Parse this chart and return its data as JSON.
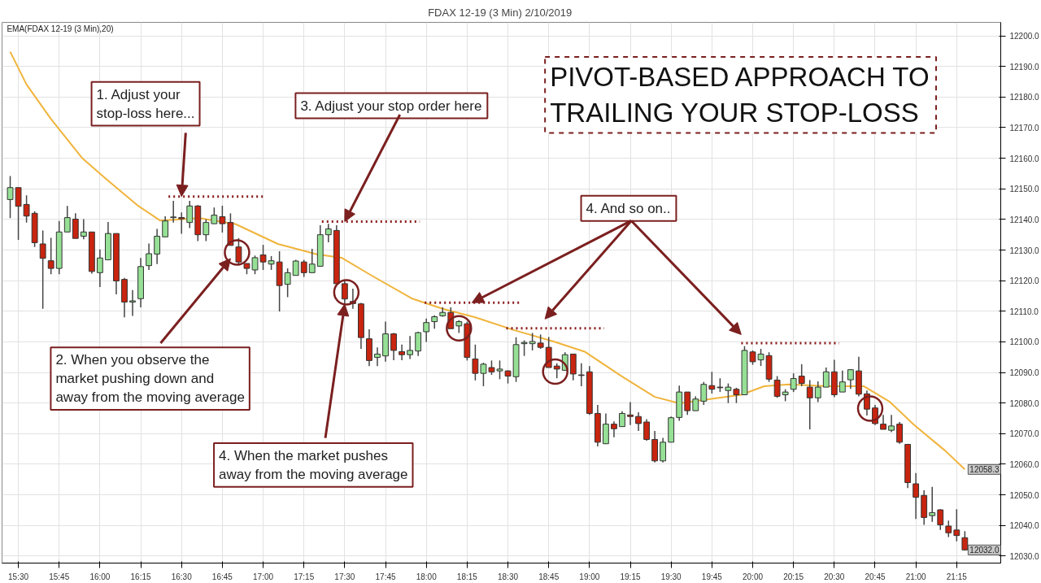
{
  "chart_data": {
    "type": "candlestick",
    "title": "FDAX 12-19 (3 Min)  2/10/2019",
    "x": [
      15.45,
      15.5,
      15.55,
      15.6,
      15.65,
      15.7,
      15.75,
      15.8,
      15.85,
      15.9,
      15.95,
      16,
      16.05,
      16.1,
      16.15,
      16.2,
      16.25,
      16.3,
      16.35,
      16.4,
      16.45,
      16.5,
      16.55,
      16.6,
      16.65,
      16.7,
      16.75,
      16.8,
      16.85,
      16.9,
      16.95,
      17,
      17.05,
      17.1,
      17.15,
      17.2,
      17.25,
      17.3,
      17.35,
      17.4,
      17.45,
      17.5,
      17.55,
      17.6,
      17.65,
      17.7,
      17.75,
      17.8,
      17.85,
      17.9,
      17.95,
      18,
      18.05,
      18.1,
      18.15,
      18.2,
      18.25,
      18.3,
      18.35,
      18.4,
      18.45,
      18.5,
      18.55,
      18.6,
      18.65,
      18.7,
      18.75,
      18.8,
      18.85,
      18.9,
      18.95,
      19,
      19.05,
      19.1,
      19.15,
      19.2,
      19.25,
      19.3,
      19.35,
      19.4,
      19.45,
      19.5,
      19.55,
      19.6,
      19.65,
      19.7,
      19.75,
      19.8,
      19.85,
      19.9,
      19.95,
      20,
      20.05,
      20.1,
      20.15,
      20.2,
      20.25,
      20.3,
      20.35,
      20.4,
      20.45,
      20.5,
      20.55,
      20.6,
      20.65,
      20.7,
      20.75,
      20.8,
      20.85,
      20.9,
      20.95,
      21,
      21.05,
      21.1,
      21.15,
      21.2,
      21.25,
      21.3
    ],
    "ohlc": [
      [
        12146.5,
        12154.2,
        12140.4,
        12150.4
      ],
      [
        12150.4,
        12150.4,
        12133.3,
        12144.3
      ],
      [
        12144.9,
        12147.9,
        12139.0,
        12141.1
      ],
      [
        12142.0,
        12142.7,
        12131.0,
        12132.4
      ],
      [
        12132.0,
        12136.4,
        12110.8,
        12127.3
      ],
      [
        12126.5,
        12134.0,
        12122.1,
        12124.0
      ],
      [
        12124.0,
        12139.5,
        12122.1,
        12135.9
      ],
      [
        12135.9,
        12144.4,
        12135.9,
        12140.6
      ],
      [
        12140.1,
        12142.0,
        12133.8,
        12133.8
      ],
      [
        12134.5,
        12140.1,
        12133.5,
        12135.9
      ],
      [
        12135.9,
        12135.9,
        12122.3,
        12123.0
      ],
      [
        12122.6,
        12130.2,
        12117.9,
        12127.4
      ],
      [
        12126.8,
        12139.2,
        12126.8,
        12135.4
      ],
      [
        12135.4,
        12135.4,
        12115.5,
        12119.9
      ],
      [
        12120.4,
        12120.9,
        12108.0,
        12113.0
      ],
      [
        12113.0,
        12116.9,
        12108.5,
        12113.4
      ],
      [
        12114.1,
        12127.4,
        12111.3,
        12124.6
      ],
      [
        12124.9,
        12132.1,
        12123.5,
        12128.8
      ],
      [
        12128.7,
        12136.9,
        12125.4,
        12134.5
      ],
      [
        12134.3,
        12141.0,
        12134.3,
        12139.5
      ],
      [
        12140.6,
        12146.1,
        12139.0,
        12140.8
      ],
      [
        12140.6,
        12142.3,
        12135.3,
        12140.2
      ],
      [
        12139.0,
        12146.1,
        12137.2,
        12144.4
      ],
      [
        12144.4,
        12144.7,
        12132.9,
        12135.0
      ],
      [
        12135.0,
        12140.0,
        12132.9,
        12139.0
      ],
      [
        12138.6,
        12143.9,
        12138.6,
        12141.4
      ],
      [
        12140.9,
        12144.5,
        12135.7,
        12138.6
      ],
      [
        12139.0,
        12142.0,
        12131.5,
        12131.5
      ],
      [
        12131.0,
        12133.9,
        12125.0,
        12126.1
      ],
      [
        12125.6,
        12125.6,
        12122.1,
        12124.0
      ],
      [
        12123.5,
        12128.2,
        12122.1,
        12127.5
      ],
      [
        12128.4,
        12131.7,
        12123.5,
        12126.1
      ],
      [
        12125.4,
        12128.0,
        12123.5,
        12126.5
      ],
      [
        12126.1,
        12129.6,
        12109.9,
        12118.4
      ],
      [
        12118.8,
        12124.0,
        12114.6,
        12122.6
      ],
      [
        12121.7,
        12126.8,
        12121.7,
        12126.4
      ],
      [
        12126.1,
        12126.8,
        12121.2,
        12122.6
      ],
      [
        12122.6,
        12130.4,
        12122.6,
        12125.4
      ],
      [
        12124.7,
        12138.1,
        12124.7,
        12135.0
      ],
      [
        12135.0,
        12138.6,
        12132.5,
        12136.9
      ],
      [
        12136.4,
        12138.1,
        12119.0,
        12119.0
      ],
      [
        12119.0,
        12119.8,
        12112.3,
        12114.0
      ],
      [
        12113.2,
        12117.4,
        12110.8,
        12112.5
      ],
      [
        12112.4,
        12112.7,
        12097.7,
        12101.4
      ],
      [
        12101.0,
        12104.1,
        12092.1,
        12093.9
      ],
      [
        12094.9,
        12098.2,
        12092.1,
        12096.0
      ],
      [
        12095.4,
        12106.6,
        12093.5,
        12102.6
      ],
      [
        12102.6,
        12102.9,
        12094.0,
        12097.2
      ],
      [
        12096.8,
        12099.1,
        12094.0,
        12095.8
      ],
      [
        12095.8,
        12101.9,
        12094.4,
        12097.2
      ],
      [
        12097.0,
        12103.3,
        12095.4,
        12103.0
      ],
      [
        12103.3,
        12107.6,
        12100.0,
        12106.3
      ],
      [
        12106.6,
        12108.7,
        12104.3,
        12108.2
      ],
      [
        12108.5,
        12111.3,
        12108.2,
        12109.6
      ],
      [
        12109.6,
        12111.3,
        12104.3,
        12104.3
      ],
      [
        12105.2,
        12107.1,
        12102.9,
        12106.6
      ],
      [
        12105.9,
        12106.6,
        12093.9,
        12094.9
      ],
      [
        12094.4,
        12099.1,
        12087.4,
        12089.7
      ],
      [
        12089.7,
        12093.2,
        12085.5,
        12092.7
      ],
      [
        12091.6,
        12093.9,
        12089.2,
        12090.2
      ],
      [
        12090.5,
        12093.9,
        12087.8,
        12091.1
      ],
      [
        12090.5,
        12090.7,
        12086.4,
        12088.8
      ],
      [
        12088.6,
        12101.5,
        12086.9,
        12099.1
      ],
      [
        12099.4,
        12100.5,
        12095.4,
        12099.8
      ],
      [
        12099.4,
        12102.9,
        12097.2,
        12100.1
      ],
      [
        12099.6,
        12102.4,
        12097.7,
        12098.2
      ],
      [
        12098.2,
        12101.6,
        12091.6,
        12091.6
      ],
      [
        12092.1,
        12093.0,
        12088.1,
        12091.1
      ],
      [
        12090.7,
        12096.6,
        12090.7,
        12095.8
      ],
      [
        12096.0,
        12096.0,
        12087.4,
        12089.5
      ],
      [
        12089.2,
        12093.0,
        12085.5,
        12089.0
      ],
      [
        12090.2,
        12092.1,
        12076.1,
        12076.6
      ],
      [
        12076.6,
        12079.4,
        12065.8,
        12067.2
      ],
      [
        12066.7,
        12076.6,
        12066.7,
        12073.1
      ],
      [
        12073.1,
        12074.0,
        12068.8,
        12071.6
      ],
      [
        12072.3,
        12077.3,
        12072.2,
        12076.6
      ],
      [
        12076.1,
        12080.3,
        12072.8,
        12075.6
      ],
      [
        12075.6,
        12077.0,
        12070.9,
        12073.3
      ],
      [
        12073.8,
        12074.7,
        12067.7,
        12068.1
      ],
      [
        12068.1,
        12070.9,
        12060.6,
        12061.1
      ],
      [
        12061.1,
        12068.6,
        12060.6,
        12067.2
      ],
      [
        12067.2,
        12075.6,
        12067.2,
        12075.2
      ],
      [
        12075.3,
        12085.7,
        12074.2,
        12083.6
      ],
      [
        12083.6,
        12083.6,
        12076.1,
        12077.5
      ],
      [
        12077.5,
        12082.2,
        12077.5,
        12081.3
      ],
      [
        12080.6,
        12086.9,
        12079.4,
        12086.1
      ],
      [
        12085.7,
        12090.2,
        12083.1,
        12084.5
      ],
      [
        12085.2,
        12088.1,
        12083.6,
        12085.0
      ],
      [
        12084.1,
        12086.4,
        12080.0,
        12085.2
      ],
      [
        12084.5,
        12085.0,
        12080.0,
        12082.7
      ],
      [
        12082.7,
        12098.6,
        12082.7,
        12097.2
      ],
      [
        12096.7,
        12097.2,
        12092.5,
        12093.5
      ],
      [
        12094.1,
        12097.7,
        12092.1,
        12096.0
      ],
      [
        12095.5,
        12096.6,
        12086.9,
        12087.8
      ],
      [
        12087.5,
        12088.8,
        12081.7,
        12082.2
      ],
      [
        12082.7,
        12084.5,
        12080.6,
        12083.6
      ],
      [
        12084.5,
        12089.7,
        12083.6,
        12088.0
      ],
      [
        12088.8,
        12092.7,
        12085.5,
        12086.4
      ],
      [
        12085.2,
        12087.5,
        12071.4,
        12081.7
      ],
      [
        12081.7,
        12087.1,
        12080.3,
        12085.2
      ],
      [
        12085.2,
        12091.6,
        12085.2,
        12090.2
      ],
      [
        12090.2,
        12094.1,
        12081.9,
        12082.7
      ],
      [
        12083.6,
        12090.6,
        12083.6,
        12086.9
      ],
      [
        12087.6,
        12091.0,
        12084.6,
        12090.9
      ],
      [
        12090.5,
        12095.1,
        12082.2,
        12082.9
      ],
      [
        12083.0,
        12084.1,
        12075.9,
        12078.0
      ],
      [
        12078.4,
        12079.4,
        12072.8,
        12073.3
      ],
      [
        12073.1,
        12076.1,
        12071.4,
        12071.4
      ],
      [
        12071.1,
        12076.1,
        12070.5,
        12072.5
      ],
      [
        12073.1,
        12073.8,
        12066.7,
        12067.2
      ],
      [
        12066.5,
        12066.5,
        12052.2,
        12054.0
      ],
      [
        12053.6,
        12057.1,
        12042.1,
        12049.2
      ],
      [
        12049.8,
        12051.5,
        12040.2,
        12042.6
      ],
      [
        12043.2,
        12052.6,
        12041.2,
        12044.2
      ],
      [
        12045.1,
        12045.3,
        12038.5,
        12040.2
      ],
      [
        12039.8,
        12041.6,
        12036.2,
        12037.6
      ],
      [
        12038.5,
        12045.3,
        12034.8,
        12036.7
      ],
      [
        12036.0,
        12038.1,
        12031.8,
        12032.0
      ]
    ],
    "colors": [
      "#96e096",
      "#c8240f",
      "#c8240f",
      "#c8240f",
      "#c8240f",
      "#c8240f",
      "#96e096",
      "#96e096",
      "#c8240f",
      "#96e096",
      "#c8240f",
      "#96e096",
      "#96e096",
      "#c8240f",
      "#c8240f",
      "#96e096",
      "#96e096",
      "#96e096",
      "#96e096",
      "#96e096",
      "#96e096",
      "#c8240f",
      "#96e096",
      "#c8240f",
      "#96e096",
      "#96e096",
      "#c8240f",
      "#c8240f",
      "#c8240f",
      "#c8240f",
      "#96e096",
      "#c8240f",
      "#96e096",
      "#c8240f",
      "#96e096",
      "#96e096",
      "#c8240f",
      "#96e096",
      "#96e096",
      "#96e096",
      "#c8240f",
      "#c8240f",
      "#c8240f",
      "#c8240f",
      "#c8240f",
      "#96e096",
      "#96e096",
      "#c8240f",
      "#c8240f",
      "#96e096",
      "#96e096",
      "#96e096",
      "#96e096",
      "#96e096",
      "#c8240f",
      "#96e096",
      "#c8240f",
      "#c8240f",
      "#96e096",
      "#c8240f",
      "#96e096",
      "#c8240f",
      "#96e096",
      "#96e096",
      "#96e096",
      "#c8240f",
      "#c8240f",
      "#c8240f",
      "#96e096",
      "#c8240f",
      "#c8240f",
      "#c8240f",
      "#c8240f",
      "#96e096",
      "#c8240f",
      "#96e096",
      "#c8240f",
      "#c8240f",
      "#c8240f",
      "#c8240f",
      "#96e096",
      "#96e096",
      "#96e096",
      "#c8240f",
      "#96e096",
      "#96e096",
      "#c8240f",
      "#c8240f",
      "#96e096",
      "#c8240f",
      "#96e096",
      "#c8240f",
      "#96e096",
      "#c8240f",
      "#c8240f",
      "#96e096",
      "#96e096",
      "#c8240f",
      "#c8240f",
      "#96e096",
      "#96e096",
      "#c8240f",
      "#96e096",
      "#96e096",
      "#c8240f",
      "#c8240f",
      "#c8240f",
      "#c8240f",
      "#96e096",
      "#c8240f",
      "#c8240f",
      "#c8240f",
      "#c8240f",
      "#96e096",
      "#c8240f",
      "#c8240f",
      "#c8240f",
      "#c8240f"
    ],
    "series": [
      {
        "type": "line",
        "color": "#f0b43c",
        "x": [
          15.45,
          15.55,
          15.7,
          15.89,
          16.04,
          16.23,
          16.37,
          16.61,
          16.83,
          17.09,
          17.33,
          17.48,
          17.67,
          17.91,
          18.1,
          18.3,
          18.54,
          18.78,
          18.97,
          19.21,
          19.4,
          19.55,
          19.74,
          19.93,
          20.07,
          20.22,
          20.46,
          20.68,
          20.84,
          20.99,
          21.18,
          21.3
        ],
        "values": [
          12194.8,
          12184.1,
          12172.8,
          12160.1,
          12153.1,
          12144.6,
          12139.6,
          12140.4,
          12138.5,
          12132.0,
          12128.6,
          12127.5,
          12121.5,
          12114.2,
          12110.8,
          12108.0,
          12103.8,
          12100.1,
          12096.8,
          12088.3,
          12082.0,
          12079.9,
          12081.3,
          12082.7,
          12085.5,
          12086.1,
          12085.5,
          12085.5,
          12080.4,
          12072.8,
          12064.4,
          12058.3
        ]
      },
      {
        "type": "scatter",
        "color": "#7b1f1f",
        "marker": "circle",
        "x": [
          16.84,
          17.51,
          18.2,
          18.79,
          20.72
        ],
        "values": [
          12129.2,
          12116.2,
          12104.4,
          12090.3,
          12078.2
        ]
      },
      {
        "type": "line",
        "color": "#8b1c1c",
        "line_style": "dotted",
        "x": [
          16.42,
          17.01
        ],
        "values": [
          12147.5,
          12147.5
        ]
      },
      {
        "type": "line",
        "color": "#8b1c1c",
        "line_style": "dotted",
        "x": [
          17.36,
          17.96
        ],
        "values": [
          12139.3,
          12139.3
        ]
      },
      {
        "type": "line",
        "color": "#8b1c1c",
        "line_style": "dotted",
        "x": [
          17.99,
          18.58
        ],
        "values": [
          12112.8,
          12112.8
        ]
      },
      {
        "type": "line",
        "color": "#8b1c1c",
        "line_style": "dotted",
        "x": [
          18.49,
          19.09
        ],
        "values": [
          12104.4,
          12104.4
        ]
      },
      {
        "type": "line",
        "color": "#8b1c1c",
        "line_style": "dotted",
        "x": [
          19.93,
          20.53
        ],
        "values": [
          12099.6,
          12099.6
        ]
      }
    ],
    "xlim": [
      15.4,
      21.52
    ],
    "ylim": [
      12027.7,
      12204.4
    ],
    "xticks": [
      {
        "value": 15.5,
        "label": "15:30"
      },
      {
        "value": 15.75,
        "label": "15:45"
      },
      {
        "value": 16,
        "label": "16:00"
      },
      {
        "value": 16.25,
        "label": "16:15"
      },
      {
        "value": 16.5,
        "label": "16:30"
      },
      {
        "value": 16.75,
        "label": "16:45"
      },
      {
        "value": 17,
        "label": "17:00"
      },
      {
        "value": 17.25,
        "label": "17:15"
      },
      {
        "value": 17.5,
        "label": "17:30"
      },
      {
        "value": 17.75,
        "label": "17:45"
      },
      {
        "value": 18,
        "label": "18:00"
      },
      {
        "value": 18.25,
        "label": "18:15"
      },
      {
        "value": 18.5,
        "label": "18:30"
      },
      {
        "value": 18.75,
        "label": "18:45"
      },
      {
        "value": 19,
        "label": "19:00"
      },
      {
        "value": 19.25,
        "label": "19:15"
      },
      {
        "value": 19.5,
        "label": "19:30"
      },
      {
        "value": 19.75,
        "label": "19:45"
      },
      {
        "value": 20,
        "label": "20:00"
      },
      {
        "value": 20.25,
        "label": "20:15"
      },
      {
        "value": 20.5,
        "label": "20:30"
      },
      {
        "value": 20.75,
        "label": "20:45"
      },
      {
        "value": 21,
        "label": "21:00"
      },
      {
        "value": 21.25,
        "label": "21:15"
      }
    ],
    "yticks": [
      {
        "value": 12030,
        "label": "12030.0"
      },
      {
        "value": 12040,
        "label": "12040.0"
      },
      {
        "value": 12050,
        "label": "12050.0"
      },
      {
        "value": 12060,
        "label": "12060.0"
      },
      {
        "value": 12070,
        "label": "12070.0"
      },
      {
        "value": 12080,
        "label": "12080.0"
      },
      {
        "value": 12090,
        "label": "12090.0"
      },
      {
        "value": 12100,
        "label": "12100.0"
      },
      {
        "value": 12110,
        "label": "12110.0"
      },
      {
        "value": 12120,
        "label": "12120.0"
      },
      {
        "value": 12130,
        "label": "12130.0"
      },
      {
        "value": 12140,
        "label": "12140.0"
      },
      {
        "value": 12150,
        "label": "12150.0"
      },
      {
        "value": 12160,
        "label": "12160.0"
      },
      {
        "value": 12170,
        "label": "12170.0"
      },
      {
        "value": 12180,
        "label": "12180.0"
      },
      {
        "value": 12190,
        "label": "12190.0"
      },
      {
        "value": 12200,
        "label": "12200.0"
      }
    ],
    "grid": true,
    "annotations": [
      "EMA(FDAX 12-19 (3 Min),20)",
      "PIVOT-BASED APPROACH TO\nTRAILING YOUR STOP-LOSS",
      {
        "text": "1. Adjust your\nstop-loss here...",
        "x": 16.5,
        "y": 12147.5
      },
      {
        "text": "2. When you observe the\nmarket pushing down and\naway from the moving average",
        "x": 16.8,
        "y": 12127.2
      },
      {
        "text": "3. Adjust your stop order here",
        "x": 17.5,
        "y": 12139.3
      },
      {
        "text": "4. When the market pushes\naway from the moving average",
        "x": 17.5,
        "y": 12112.3
      },
      {
        "text": "4. And so on..",
        "x": 18.28,
        "y": 12112.8
      },
      {
        "text": "12058.3",
        "x": 21.3,
        "y": 12058.3
      },
      {
        "text": "12032.0",
        "x": 21.3,
        "y": 12032.0
      }
    ]
  }
}
